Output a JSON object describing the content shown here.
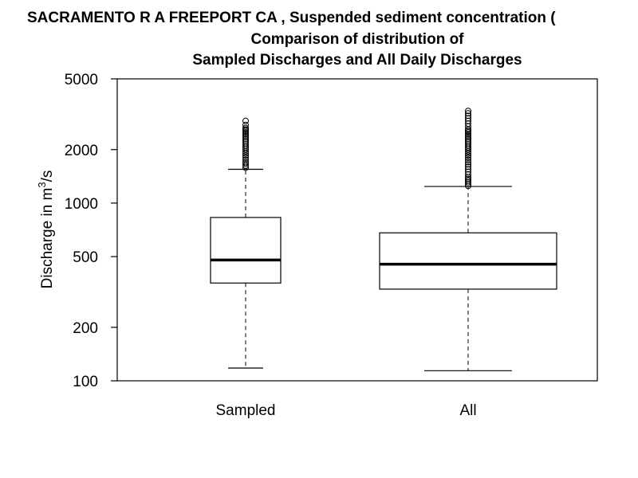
{
  "chart_data": {
    "type": "boxplot",
    "title_lines": [
      "SACRAMENTO R A FREEPORT CA , Suspended sediment concentration (",
      "Comparison of distribution of",
      "Sampled Discharges and All Daily Discharges"
    ],
    "ylabel_main": "Discharge in m",
    "ylabel_sup": "3",
    "ylabel_tail": "/s",
    "y_scale": "log",
    "ylim": [
      100,
      5000
    ],
    "y_ticks": [
      100,
      200,
      500,
      1000,
      2000,
      5000
    ],
    "y_tick_labels": [
      "100",
      "200",
      "500",
      "1000",
      "2000",
      "5000"
    ],
    "categories": [
      "Sampled",
      "All"
    ],
    "boxes": [
      {
        "label": "Sampled",
        "whisker_low": 118,
        "q1": 355,
        "median": 478,
        "q3": 830,
        "whisker_high": 1550,
        "outliers": [
          1580,
          1620,
          1660,
          1700,
          1750,
          1800,
          1850,
          1900,
          1950,
          2000,
          2050,
          2100,
          2150,
          2200,
          2250,
          2300,
          2350,
          2400,
          2450,
          2500,
          2550,
          2600,
          2650,
          2750,
          2900
        ]
      },
      {
        "label": "All",
        "whisker_low": 114,
        "q1": 328,
        "median": 453,
        "q3": 680,
        "whisker_high": 1240,
        "outliers": [
          1250,
          1280,
          1310,
          1340,
          1370,
          1400,
          1450,
          1500,
          1550,
          1600,
          1650,
          1700,
          1750,
          1800,
          1850,
          1900,
          1950,
          2000,
          2050,
          2100,
          2150,
          2200,
          2250,
          2300,
          2350,
          2400,
          2450,
          2500,
          2550,
          2600,
          2700,
          2800,
          2900,
          3000,
          3100,
          3200,
          3300
        ]
      }
    ]
  }
}
